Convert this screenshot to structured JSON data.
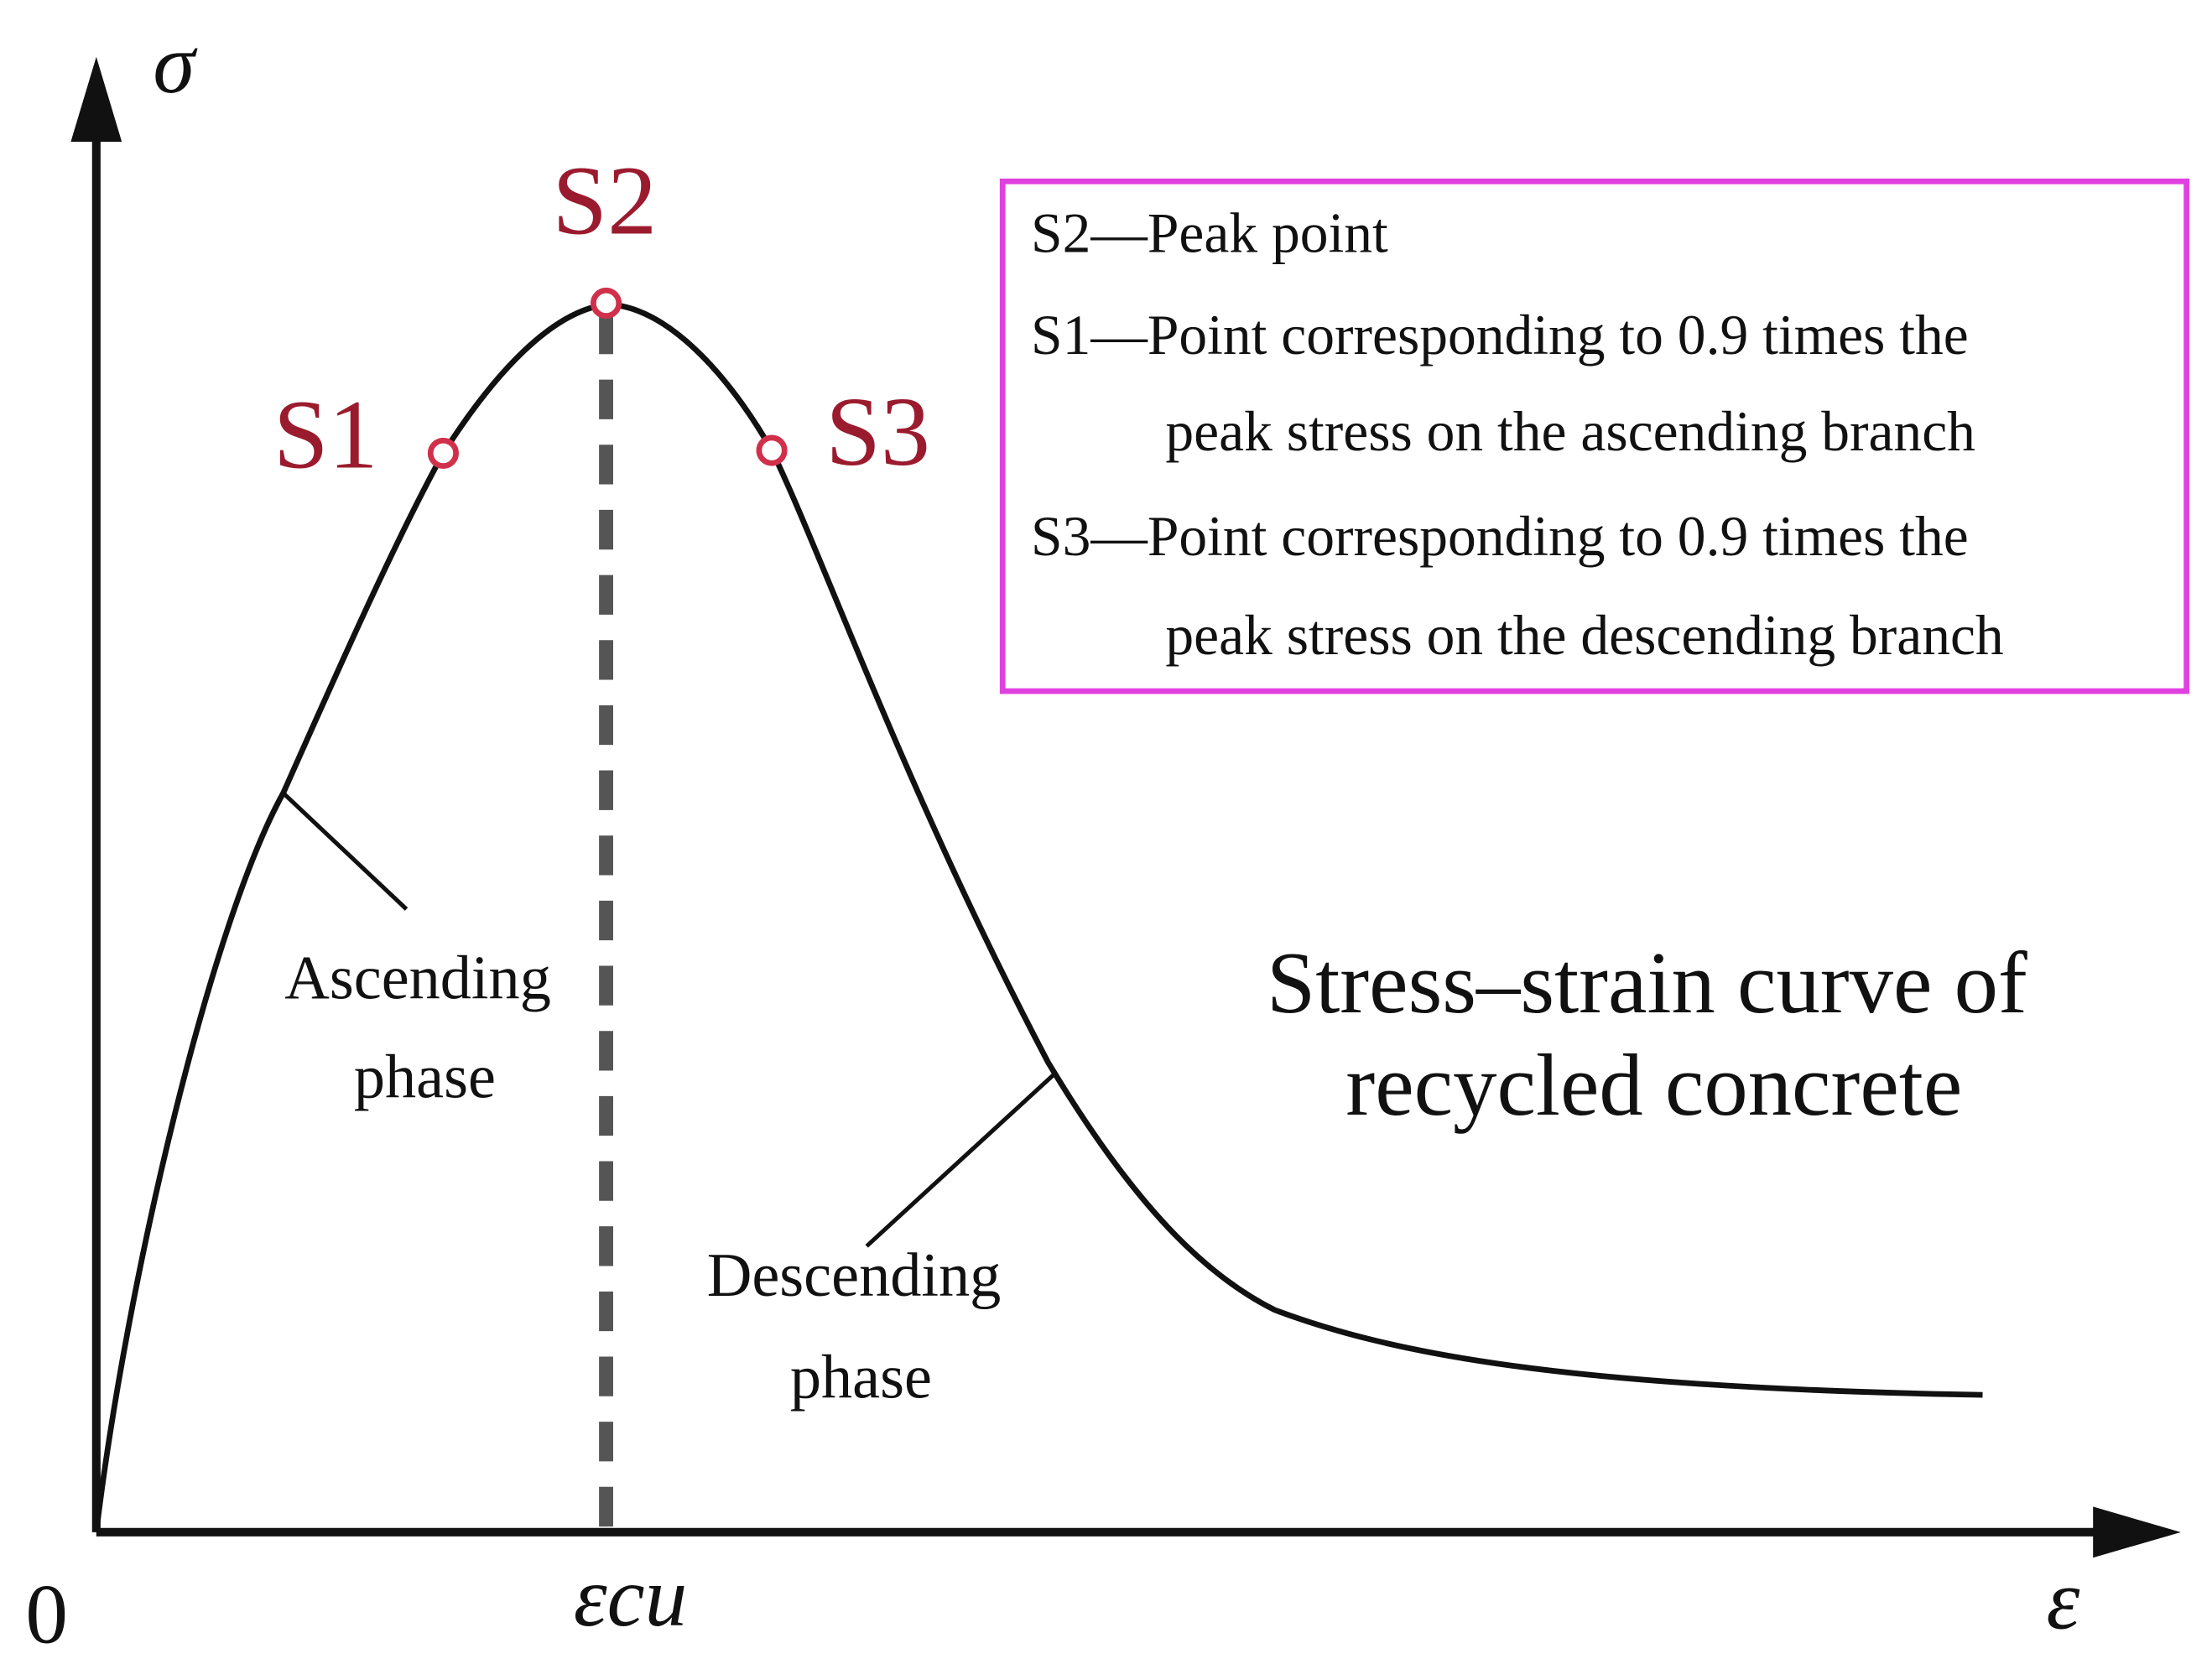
{
  "axes": {
    "y_label": "σ",
    "x_label": "ε",
    "origin": "0",
    "peak_strain": "εcu"
  },
  "points": [
    {
      "label": "S1"
    },
    {
      "label": "S2"
    },
    {
      "label": "S3"
    }
  ],
  "legend": [
    {
      "lines": [
        "S2—Peak point"
      ]
    },
    {
      "lines": [
        "S1—Point corresponding to 0.9 times the",
        "peak stress on the ascending branch"
      ]
    },
    {
      "lines": [
        "S3—Point corresponding to 0.9 times the",
        "peak stress on the descending branch"
      ]
    }
  ],
  "annotations": {
    "ascending_phase": [
      "Ascending",
      "phase"
    ],
    "descending_phase": [
      "Descending",
      "phase"
    ]
  },
  "title": [
    "Stress–strain curve of",
    "recycled concrete"
  ]
}
